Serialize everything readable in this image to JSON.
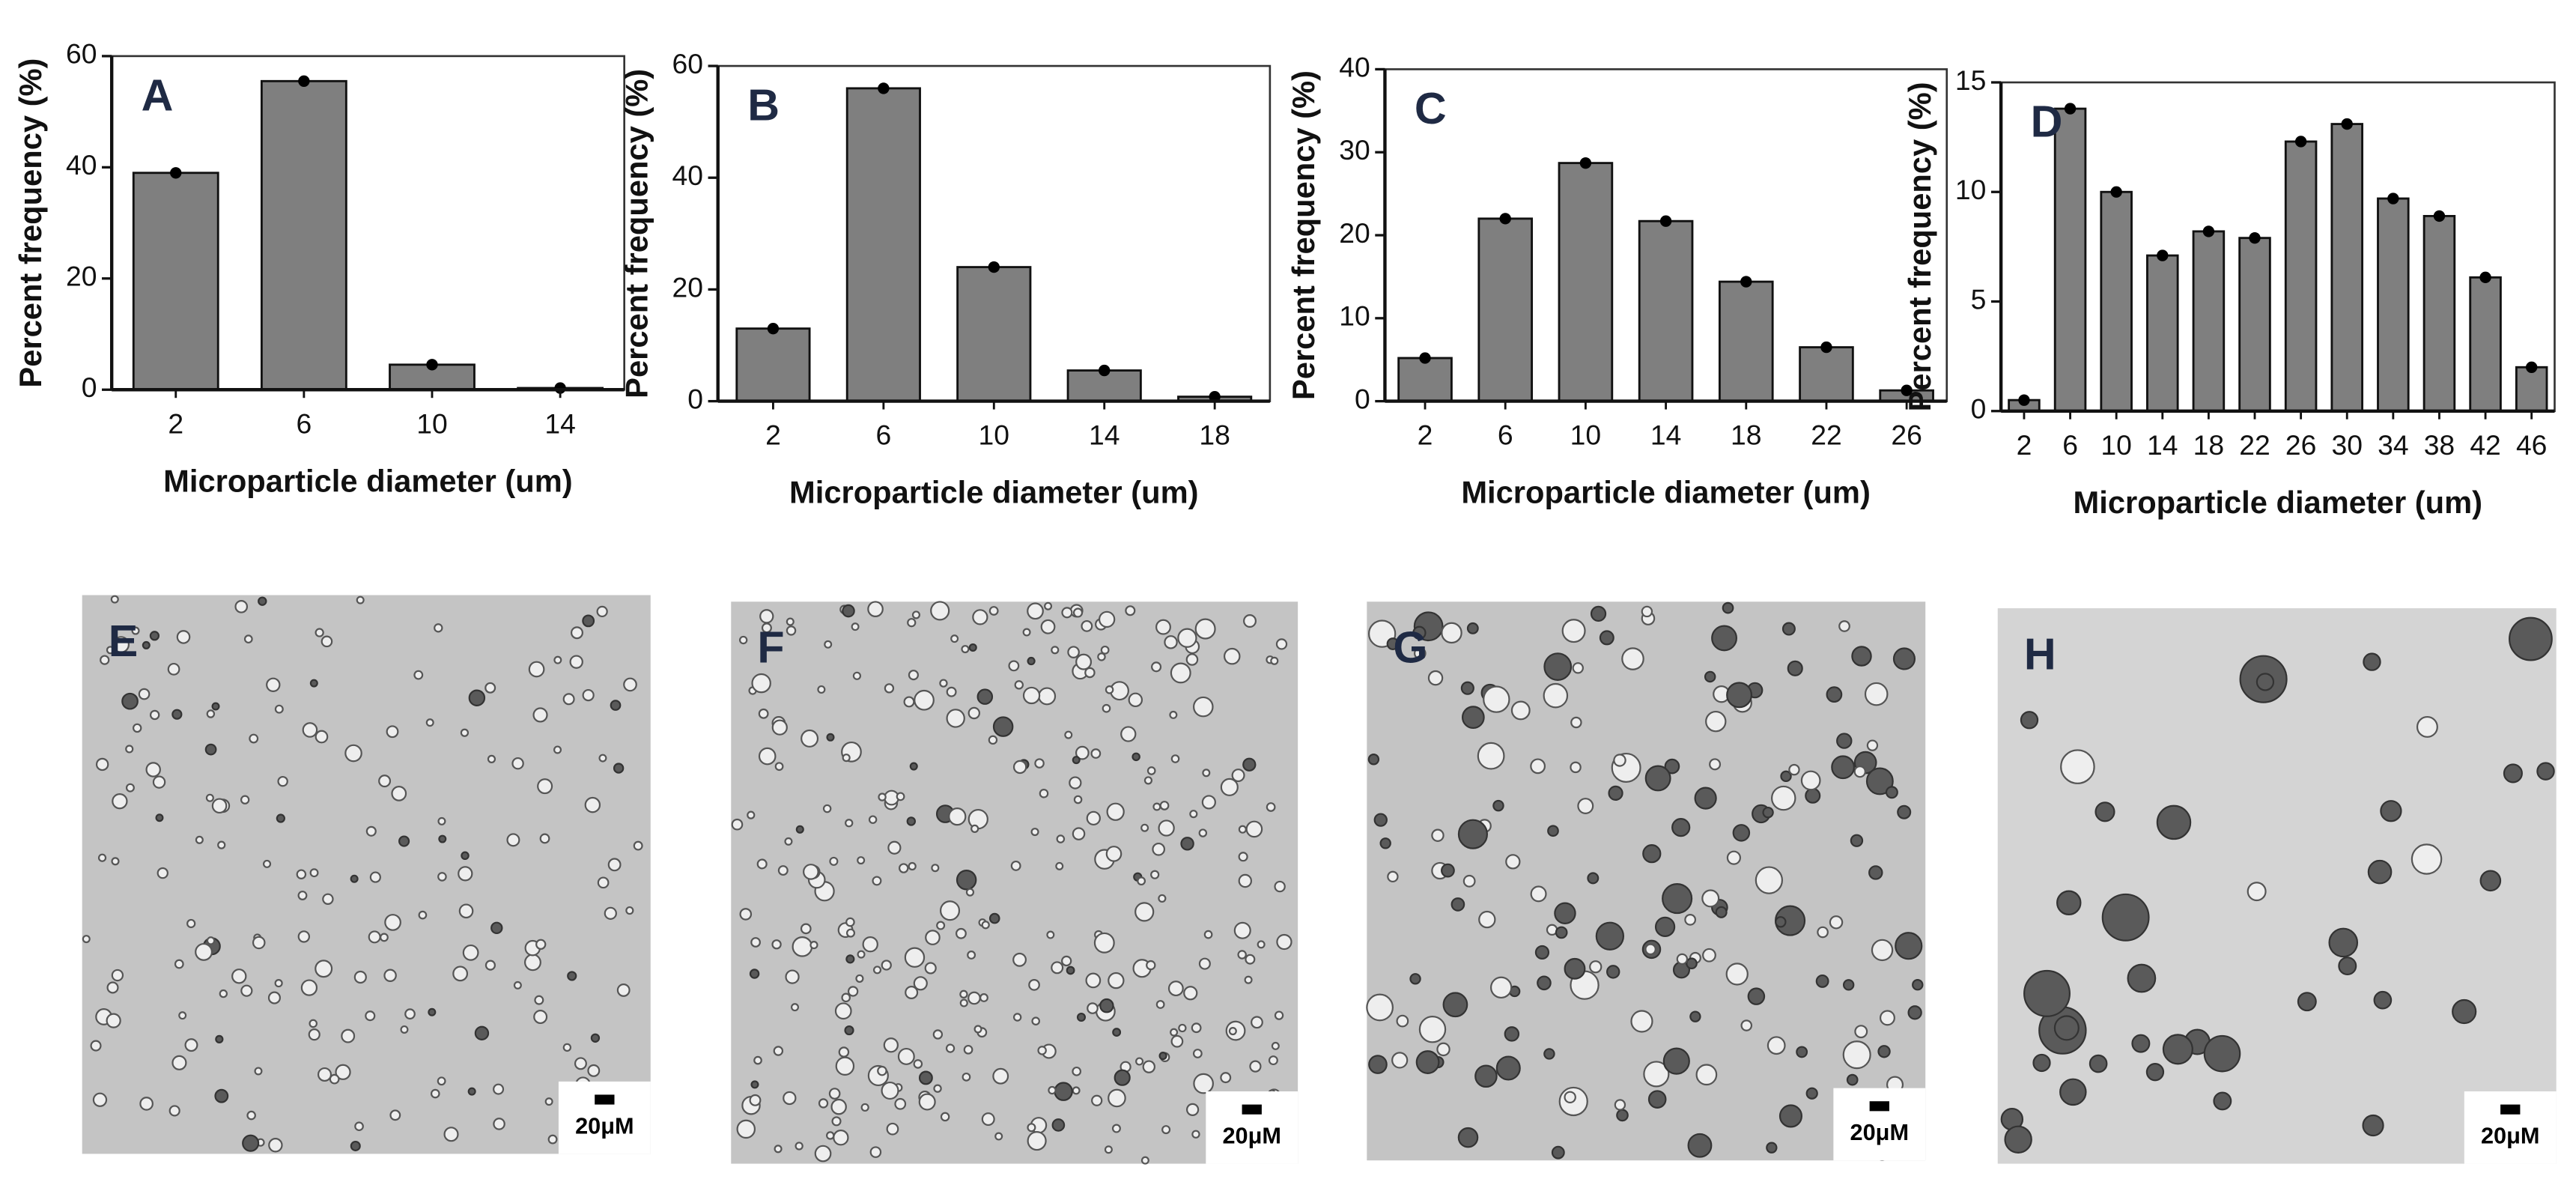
{
  "chart_data": [
    {
      "type": "bar",
      "panel": "A",
      "y_label": "Percent frequency (%)",
      "x_label": "Microparticle diameter (um)",
      "categories": [
        "2",
        "6",
        "10",
        "14"
      ],
      "values": [
        39,
        55.5,
        4.5,
        0.3
      ],
      "color": "#7f7f7f",
      "ylim": [
        0,
        60
      ],
      "yticks": [
        0,
        20,
        40,
        60
      ]
    },
    {
      "type": "bar",
      "panel": "B",
      "y_label": "Percent frequency (%)",
      "x_label": "Microparticle diameter (um)",
      "categories": [
        "2",
        "6",
        "10",
        "14",
        "18"
      ],
      "values": [
        13,
        56,
        24,
        5.5,
        0.8
      ],
      "color": "#7f7f7f",
      "ylim": [
        0,
        60
      ],
      "yticks": [
        0,
        20,
        40,
        60
      ]
    },
    {
      "type": "bar",
      "panel": "C",
      "y_label": "Percent frequency (%)",
      "x_label": "Microparticle diameter (um)",
      "categories": [
        "2",
        "6",
        "10",
        "14",
        "18",
        "22",
        "26"
      ],
      "values": [
        5.2,
        22,
        28.7,
        21.7,
        14.4,
        6.5,
        1.3
      ],
      "color": "#7f7f7f",
      "ylim": [
        0,
        40
      ],
      "yticks": [
        0,
        10,
        20,
        30,
        40
      ]
    },
    {
      "type": "bar",
      "panel": "D",
      "y_label": "Percent frequency (%)",
      "x_label": "Microparticle diameter (um)",
      "categories": [
        "2",
        "6",
        "10",
        "14",
        "18",
        "22",
        "26",
        "30",
        "34",
        "38",
        "42",
        "46"
      ],
      "values": [
        0.5,
        13.8,
        10,
        7.1,
        8.2,
        7.9,
        12.3,
        13.1,
        9.7,
        8.9,
        6.1,
        2.0
      ],
      "color": "#7f7f7f",
      "ylim": [
        0,
        15
      ],
      "yticks": [
        0,
        5,
        10,
        15
      ]
    }
  ],
  "images": [
    {
      "panel": "E",
      "scale_label": "20μM"
    },
    {
      "panel": "F",
      "scale_label": "20μM"
    },
    {
      "panel": "G",
      "scale_label": "20μM"
    },
    {
      "panel": "H",
      "scale_label": "20μM"
    }
  ]
}
